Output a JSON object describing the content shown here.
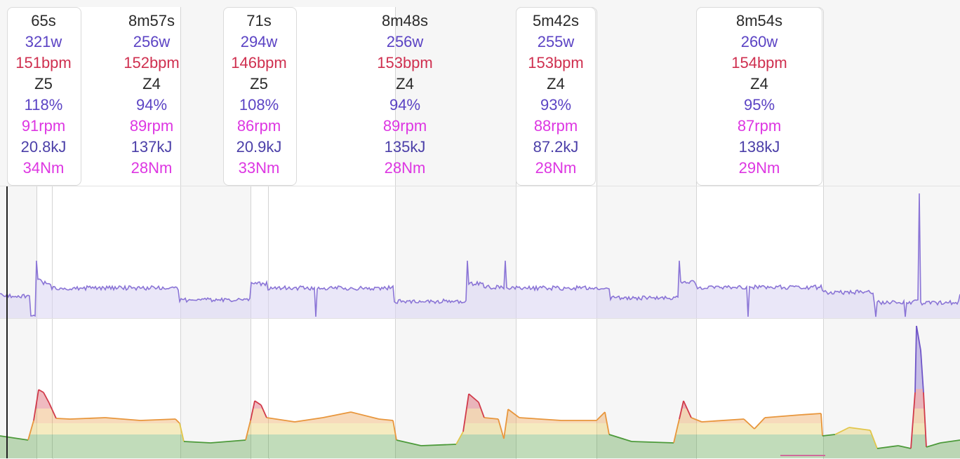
{
  "theme": {
    "power_line": "#8a74d6",
    "power_fill": "#d9d3f2",
    "hr_zone_colors": [
      "#4c9a3a",
      "#e2c64a",
      "#e8963c",
      "#d13a4a",
      "#6f55c8"
    ],
    "background": "#f6f6f6"
  },
  "segments": [
    {
      "time": "65s",
      "watts": "321w",
      "hr": "151bpm",
      "zone": "Z5",
      "pct": "118%",
      "cadence": "91rpm",
      "energy": "20.8kJ",
      "torque": "34Nm"
    },
    {
      "time": "8m57s",
      "watts": "256w",
      "hr": "152bpm",
      "zone": "Z4",
      "pct": "94%",
      "cadence": "89rpm",
      "energy": "137kJ",
      "torque": "28Nm"
    },
    {
      "time": "71s",
      "watts": "294w",
      "hr": "146bpm",
      "zone": "Z5",
      "pct": "108%",
      "cadence": "86rpm",
      "energy": "20.9kJ",
      "torque": "33Nm"
    },
    {
      "time": "8m48s",
      "watts": "256w",
      "hr": "153bpm",
      "zone": "Z4",
      "pct": "94%",
      "cadence": "89rpm",
      "energy": "135kJ",
      "torque": "28Nm"
    },
    {
      "time": "5m42s",
      "watts": "255w",
      "hr": "153bpm",
      "zone": "Z4",
      "pct": "93%",
      "cadence": "88rpm",
      "energy": "87.2kJ",
      "torque": "28Nm"
    },
    {
      "time": "8m54s",
      "watts": "260w",
      "hr": "154bpm",
      "zone": "Z4",
      "pct": "95%",
      "cadence": "87rpm",
      "energy": "138kJ",
      "torque": "29Nm"
    }
  ]
}
